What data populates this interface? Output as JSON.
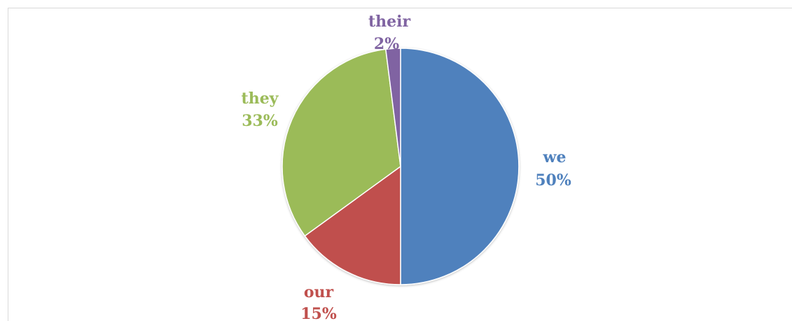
{
  "chart_data": {
    "type": "pie",
    "title": "",
    "slices": [
      {
        "name": "we",
        "value": 50,
        "label": "50%",
        "color": "#4f81bd"
      },
      {
        "name": "our",
        "value": 15,
        "label": "15%",
        "color": "#c0504d"
      },
      {
        "name": "they",
        "value": 33,
        "label": "33%",
        "color": "#9bbb59"
      },
      {
        "name": "their",
        "value": 2,
        "label": "2%",
        "color": "#8064a2"
      }
    ],
    "legend": "none",
    "data_labels": "category-and-percent, outside end"
  }
}
